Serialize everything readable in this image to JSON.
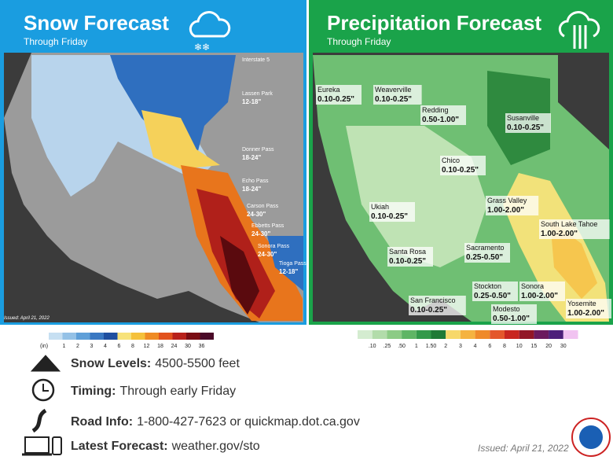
{
  "snow_panel": {
    "title": "Snow Forecast",
    "subtitle": "Through  Friday",
    "issued": "Issued: April 21, 2022",
    "labels": [
      {
        "name": "Interstate 5"
      },
      {
        "name": "Lassen Park",
        "amount": "12-18\""
      },
      {
        "name": "Donner Pass",
        "amount": "18-24\""
      },
      {
        "name": "Echo Pass",
        "amount": "18-24\""
      },
      {
        "name": "Carson Pass",
        "amount": "24-30\""
      },
      {
        "name": "Ebbetts Pass",
        "amount": "24-30\""
      },
      {
        "name": "Sonora Pass",
        "amount": "24-30\""
      },
      {
        "name": "Tioga Pass",
        "amount": "12-18\""
      }
    ]
  },
  "precip_panel": {
    "title": "Precipitation Forecast",
    "subtitle": "Through  Friday",
    "labels": [
      {
        "name": "Eureka",
        "amount": "0.10-0.25\""
      },
      {
        "name": "Weaverville",
        "amount": "0.10-0.25\""
      },
      {
        "name": "Redding",
        "amount": "0.50-1.00\""
      },
      {
        "name": "Susanville",
        "amount": "0.10-0.25\""
      },
      {
        "name": "Chico",
        "amount": "0.10-0.25\""
      },
      {
        "name": "Grass Valley",
        "amount": "1.00-2.00\""
      },
      {
        "name": "Ukiah",
        "amount": "0.10-0.25\""
      },
      {
        "name": "South Lake Tahoe",
        "amount": "1.00-2.00\""
      },
      {
        "name": "Santa Rosa",
        "amount": "0.10-0.25\""
      },
      {
        "name": "Sacramento",
        "amount": "0.25-0.50\""
      },
      {
        "name": "Stockton",
        "amount": "0.25-0.50\""
      },
      {
        "name": "Sonora",
        "amount": "1.00-2.00\""
      },
      {
        "name": "San Francisco",
        "amount": "0.10-0.25\""
      },
      {
        "name": "Modesto",
        "amount": "0.50-1.00\""
      },
      {
        "name": "Yosemite",
        "amount": "1.00-2.00\""
      }
    ]
  },
  "snow_legend": {
    "unit": "(in)",
    "ticks": [
      "1",
      "2",
      "3",
      "4",
      "6",
      "8",
      "12",
      "18",
      "24",
      "30",
      "36"
    ]
  },
  "precip_legend": {
    "ticks": [
      ".10",
      ".25",
      ".50",
      "1",
      "1.50",
      "2",
      "3",
      "4",
      "6",
      "8",
      "10",
      "15",
      "20",
      "30"
    ]
  },
  "info": [
    {
      "label": "Snow Levels:",
      "text": "4500-5500  feet"
    },
    {
      "label": "Timing:",
      "text": "Through early Friday"
    },
    {
      "label": "Road Info:",
      "text": "1-800-427-7623  or quickmap.dot.ca.gov"
    },
    {
      "label": "Latest Forecast:",
      "text": "weather.gov/sto"
    }
  ],
  "footer": {
    "issued": "Issued: April 21, 2022"
  }
}
